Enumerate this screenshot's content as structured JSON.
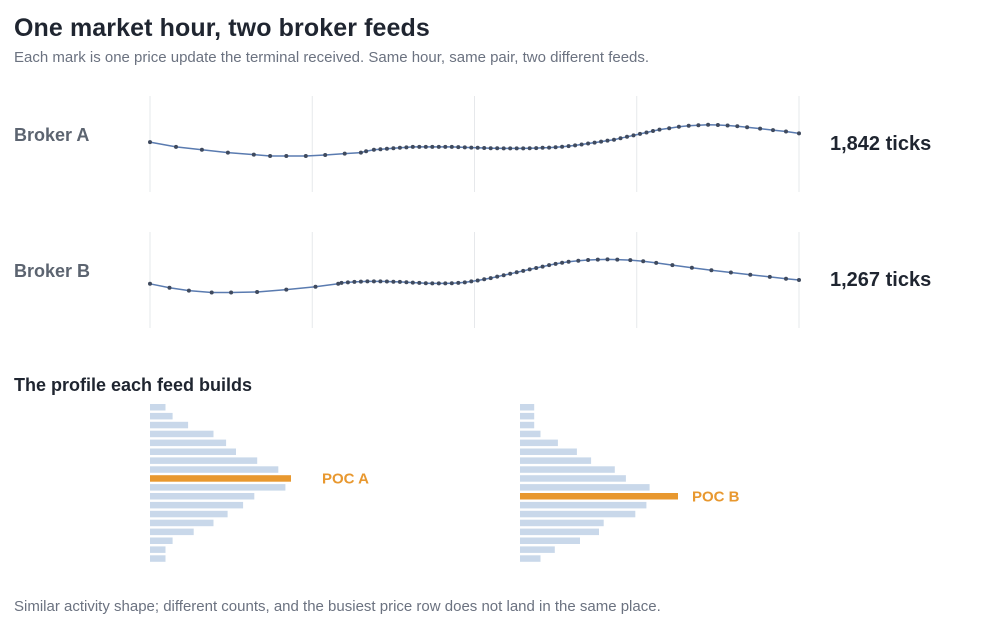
{
  "header": {
    "title": "One market hour, two broker feeds",
    "subtitle": "Each mark is one price update the terminal received. Same hour, same pair, two different feeds."
  },
  "feeds": [
    {
      "label": "Broker A",
      "count_text": "1,842 ticks"
    },
    {
      "label": "Broker B",
      "count_text": "1,267 ticks"
    }
  ],
  "profile_section": {
    "title": "The profile each feed builds"
  },
  "footer": {
    "text": "Similar activity shape; different counts, and the busiest price row does not land in the same place."
  },
  "colors": {
    "line": "#5a7bb0",
    "tick_dot": "#3f4a5e",
    "grid": "#e6e8eb",
    "bar": "#c9d8ea",
    "poc": "#e8982f",
    "poc_label": "#e8982f"
  },
  "chart_data": [
    {
      "type": "line",
      "name": "Broker A",
      "grid": "vertical",
      "gridline_count": 5,
      "ticks": [
        [
          0.0,
          0.48
        ],
        [
          0.04,
          0.53
        ],
        [
          0.08,
          0.56
        ],
        [
          0.12,
          0.59
        ],
        [
          0.16,
          0.61
        ],
        [
          0.185,
          0.625
        ],
        [
          0.21,
          0.625
        ],
        [
          0.24,
          0.625
        ],
        [
          0.27,
          0.615
        ],
        [
          0.3,
          0.6
        ],
        [
          0.325,
          0.59
        ],
        [
          0.333,
          0.575
        ],
        [
          0.345,
          0.56
        ],
        [
          0.355,
          0.555
        ],
        [
          0.365,
          0.55
        ],
        [
          0.375,
          0.545
        ],
        [
          0.385,
          0.54
        ],
        [
          0.395,
          0.535
        ],
        [
          0.405,
          0.53
        ],
        [
          0.415,
          0.53
        ],
        [
          0.425,
          0.53
        ],
        [
          0.435,
          0.53
        ],
        [
          0.445,
          0.53
        ],
        [
          0.455,
          0.53
        ],
        [
          0.465,
          0.53
        ],
        [
          0.475,
          0.532
        ],
        [
          0.485,
          0.535
        ],
        [
          0.495,
          0.537
        ],
        [
          0.505,
          0.54
        ],
        [
          0.515,
          0.542
        ],
        [
          0.525,
          0.544
        ],
        [
          0.535,
          0.545
        ],
        [
          0.545,
          0.546
        ],
        [
          0.555,
          0.546
        ],
        [
          0.565,
          0.546
        ],
        [
          0.575,
          0.546
        ],
        [
          0.585,
          0.545
        ],
        [
          0.595,
          0.543
        ],
        [
          0.605,
          0.54
        ],
        [
          0.615,
          0.537
        ],
        [
          0.625,
          0.533
        ],
        [
          0.635,
          0.528
        ],
        [
          0.645,
          0.522
        ],
        [
          0.655,
          0.515
        ],
        [
          0.665,
          0.505
        ],
        [
          0.675,
          0.495
        ],
        [
          0.685,
          0.485
        ],
        [
          0.695,
          0.475
        ],
        [
          0.705,
          0.465
        ],
        [
          0.715,
          0.455
        ],
        [
          0.725,
          0.44
        ],
        [
          0.735,
          0.425
        ],
        [
          0.745,
          0.41
        ],
        [
          0.755,
          0.395
        ],
        [
          0.765,
          0.38
        ],
        [
          0.775,
          0.365
        ],
        [
          0.785,
          0.35
        ],
        [
          0.8,
          0.335
        ],
        [
          0.815,
          0.32
        ],
        [
          0.83,
          0.31
        ],
        [
          0.845,
          0.305
        ],
        [
          0.86,
          0.3
        ],
        [
          0.875,
          0.302
        ],
        [
          0.89,
          0.307
        ],
        [
          0.905,
          0.315
        ],
        [
          0.92,
          0.325
        ],
        [
          0.94,
          0.34
        ],
        [
          0.96,
          0.355
        ],
        [
          0.98,
          0.37
        ],
        [
          1.0,
          0.39
        ]
      ]
    },
    {
      "type": "line",
      "name": "Broker B",
      "grid": "vertical",
      "gridline_count": 5,
      "ticks": [
        [
          0.0,
          0.54
        ],
        [
          0.03,
          0.58
        ],
        [
          0.06,
          0.61
        ],
        [
          0.095,
          0.63
        ],
        [
          0.125,
          0.63
        ],
        [
          0.165,
          0.625
        ],
        [
          0.21,
          0.6
        ],
        [
          0.255,
          0.57
        ],
        [
          0.29,
          0.54
        ],
        [
          0.295,
          0.53
        ],
        [
          0.305,
          0.525
        ],
        [
          0.315,
          0.52
        ],
        [
          0.325,
          0.517
        ],
        [
          0.335,
          0.515
        ],
        [
          0.345,
          0.515
        ],
        [
          0.355,
          0.515
        ],
        [
          0.365,
          0.516
        ],
        [
          0.375,
          0.518
        ],
        [
          0.385,
          0.52
        ],
        [
          0.395,
          0.523
        ],
        [
          0.405,
          0.527
        ],
        [
          0.415,
          0.53
        ],
        [
          0.425,
          0.533
        ],
        [
          0.435,
          0.535
        ],
        [
          0.445,
          0.535
        ],
        [
          0.455,
          0.535
        ],
        [
          0.465,
          0.533
        ],
        [
          0.475,
          0.53
        ],
        [
          0.485,
          0.525
        ],
        [
          0.495,
          0.515
        ],
        [
          0.505,
          0.505
        ],
        [
          0.515,
          0.493
        ],
        [
          0.525,
          0.48
        ],
        [
          0.535,
          0.465
        ],
        [
          0.545,
          0.45
        ],
        [
          0.555,
          0.435
        ],
        [
          0.565,
          0.42
        ],
        [
          0.575,
          0.405
        ],
        [
          0.585,
          0.39
        ],
        [
          0.595,
          0.375
        ],
        [
          0.605,
          0.36
        ],
        [
          0.615,
          0.345
        ],
        [
          0.625,
          0.332
        ],
        [
          0.635,
          0.32
        ],
        [
          0.645,
          0.31
        ],
        [
          0.66,
          0.3
        ],
        [
          0.675,
          0.292
        ],
        [
          0.69,
          0.287
        ],
        [
          0.705,
          0.285
        ],
        [
          0.72,
          0.287
        ],
        [
          0.74,
          0.293
        ],
        [
          0.76,
          0.305
        ],
        [
          0.78,
          0.322
        ],
        [
          0.805,
          0.345
        ],
        [
          0.835,
          0.372
        ],
        [
          0.865,
          0.398
        ],
        [
          0.895,
          0.422
        ],
        [
          0.925,
          0.445
        ],
        [
          0.955,
          0.468
        ],
        [
          0.98,
          0.488
        ],
        [
          1.0,
          0.5
        ]
      ]
    },
    {
      "type": "bar",
      "orientation": "horizontal",
      "name": "POC A",
      "values": [
        0.11,
        0.16,
        0.27,
        0.45,
        0.54,
        0.61,
        0.76,
        0.91,
        1.0,
        0.96,
        0.74,
        0.66,
        0.55,
        0.45,
        0.31,
        0.16,
        0.11,
        0.11
      ],
      "poc_index": 8,
      "poc_label": "POC A"
    },
    {
      "type": "bar",
      "orientation": "horizontal",
      "name": "POC B",
      "values": [
        0.09,
        0.09,
        0.09,
        0.13,
        0.24,
        0.36,
        0.45,
        0.6,
        0.67,
        0.82,
        1.0,
        0.8,
        0.73,
        0.53,
        0.5,
        0.38,
        0.22,
        0.13
      ],
      "poc_index": 10,
      "poc_label": "POC B"
    }
  ]
}
